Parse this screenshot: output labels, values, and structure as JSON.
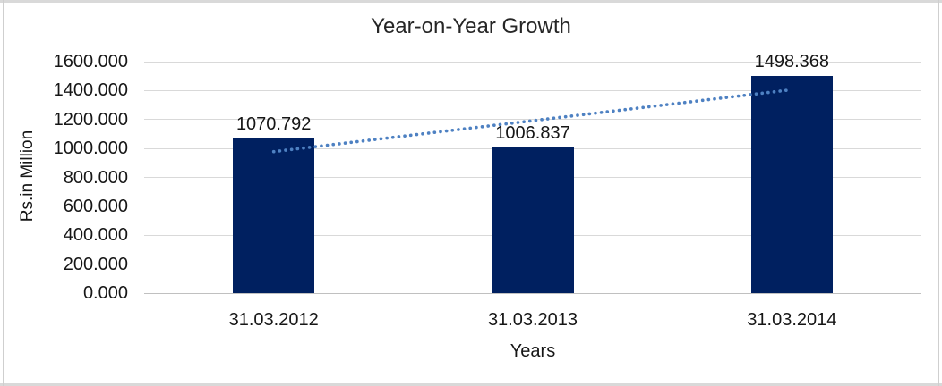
{
  "chart_data": {
    "type": "bar",
    "title": "Year-on-Year Growth",
    "xlabel": "Years",
    "ylabel": "Rs.in Million",
    "categories": [
      "31.03.2012",
      "31.03.2013",
      "31.03.2014"
    ],
    "values": [
      1070.792,
      1006.837,
      1498.368
    ],
    "value_labels": [
      "1070.792",
      "1006.837",
      "1498.368"
    ],
    "ylim": [
      0,
      1600
    ],
    "ytick_step": 200,
    "ytick_labels": [
      "0.000",
      "200.000",
      "400.000",
      "600.000",
      "800.000",
      "1000.000",
      "1200.000",
      "1400.000",
      "1600.000"
    ],
    "grid": "horizontal",
    "legend": "none",
    "colors": {
      "bar": "#002060",
      "gridline": "#d9d9d9",
      "axis_line": "#c0c0c0",
      "frame_border": "#d9d9d9",
      "text": "#161616"
    },
    "trendline": {
      "type": "linear",
      "style": "dotted",
      "color": "#4e81c2",
      "start_value": 978,
      "end_value": 1406
    }
  }
}
